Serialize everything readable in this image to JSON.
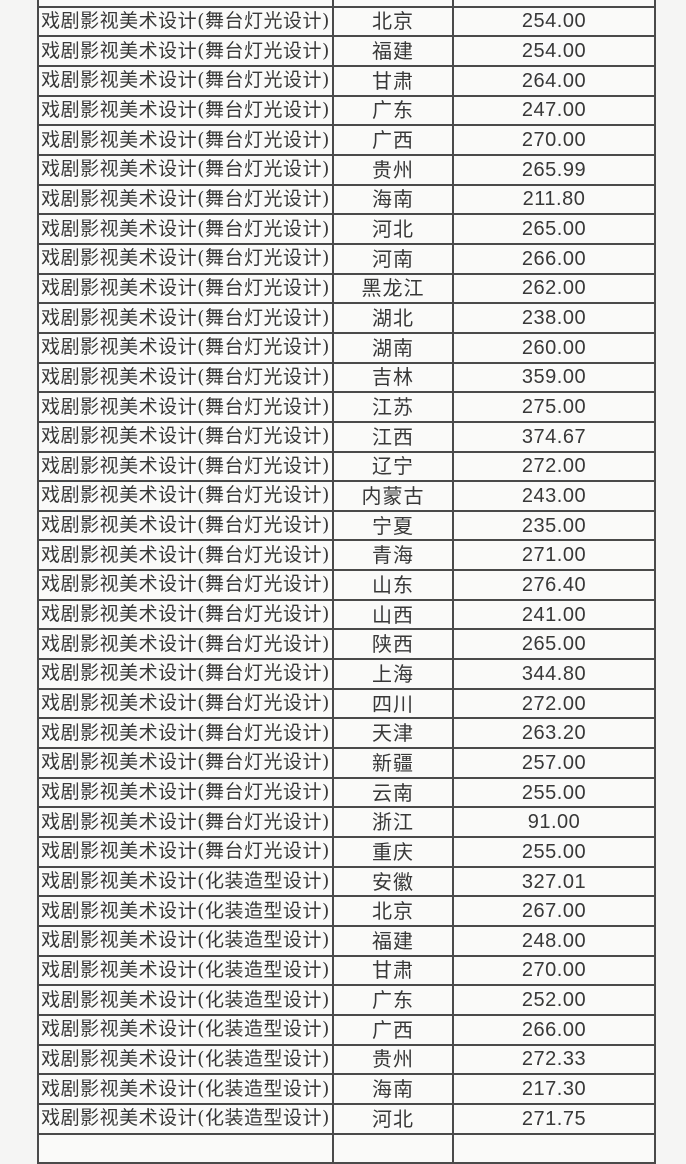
{
  "colors": {
    "page_bg": "#f5f5f4",
    "cell_bg": "#fafaf9",
    "border": "#4a4a4a",
    "text": "#383838"
  },
  "table": {
    "rows": [
      {
        "program": "戏剧影视美术设计(舞台灯光设计)",
        "province": "北京",
        "score": "254.00"
      },
      {
        "program": "戏剧影视美术设计(舞台灯光设计)",
        "province": "福建",
        "score": "254.00"
      },
      {
        "program": "戏剧影视美术设计(舞台灯光设计)",
        "province": "甘肃",
        "score": "264.00"
      },
      {
        "program": "戏剧影视美术设计(舞台灯光设计)",
        "province": "广东",
        "score": "247.00"
      },
      {
        "program": "戏剧影视美术设计(舞台灯光设计)",
        "province": "广西",
        "score": "270.00"
      },
      {
        "program": "戏剧影视美术设计(舞台灯光设计)",
        "province": "贵州",
        "score": "265.99"
      },
      {
        "program": "戏剧影视美术设计(舞台灯光设计)",
        "province": "海南",
        "score": "211.80"
      },
      {
        "program": "戏剧影视美术设计(舞台灯光设计)",
        "province": "河北",
        "score": "265.00"
      },
      {
        "program": "戏剧影视美术设计(舞台灯光设计)",
        "province": "河南",
        "score": "266.00"
      },
      {
        "program": "戏剧影视美术设计(舞台灯光设计)",
        "province": "黑龙江",
        "score": "262.00"
      },
      {
        "program": "戏剧影视美术设计(舞台灯光设计)",
        "province": "湖北",
        "score": "238.00"
      },
      {
        "program": "戏剧影视美术设计(舞台灯光设计)",
        "province": "湖南",
        "score": "260.00"
      },
      {
        "program": "戏剧影视美术设计(舞台灯光设计)",
        "province": "吉林",
        "score": "359.00"
      },
      {
        "program": "戏剧影视美术设计(舞台灯光设计)",
        "province": "江苏",
        "score": "275.00"
      },
      {
        "program": "戏剧影视美术设计(舞台灯光设计)",
        "province": "江西",
        "score": "374.67"
      },
      {
        "program": "戏剧影视美术设计(舞台灯光设计)",
        "province": "辽宁",
        "score": "272.00"
      },
      {
        "program": "戏剧影视美术设计(舞台灯光设计)",
        "province": "内蒙古",
        "score": "243.00"
      },
      {
        "program": "戏剧影视美术设计(舞台灯光设计)",
        "province": "宁夏",
        "score": "235.00"
      },
      {
        "program": "戏剧影视美术设计(舞台灯光设计)",
        "province": "青海",
        "score": "271.00"
      },
      {
        "program": "戏剧影视美术设计(舞台灯光设计)",
        "province": "山东",
        "score": "276.40"
      },
      {
        "program": "戏剧影视美术设计(舞台灯光设计)",
        "province": "山西",
        "score": "241.00"
      },
      {
        "program": "戏剧影视美术设计(舞台灯光设计)",
        "province": "陕西",
        "score": "265.00"
      },
      {
        "program": "戏剧影视美术设计(舞台灯光设计)",
        "province": "上海",
        "score": "344.80"
      },
      {
        "program": "戏剧影视美术设计(舞台灯光设计)",
        "province": "四川",
        "score": "272.00"
      },
      {
        "program": "戏剧影视美术设计(舞台灯光设计)",
        "province": "天津",
        "score": "263.20"
      },
      {
        "program": "戏剧影视美术设计(舞台灯光设计)",
        "province": "新疆",
        "score": "257.00"
      },
      {
        "program": "戏剧影视美术设计(舞台灯光设计)",
        "province": "云南",
        "score": "255.00"
      },
      {
        "program": "戏剧影视美术设计(舞台灯光设计)",
        "province": "浙江",
        "score": "91.00"
      },
      {
        "program": "戏剧影视美术设计(舞台灯光设计)",
        "province": "重庆",
        "score": "255.00"
      },
      {
        "program": "戏剧影视美术设计(化装造型设计)",
        "province": "安徽",
        "score": "327.01"
      },
      {
        "program": "戏剧影视美术设计(化装造型设计)",
        "province": "北京",
        "score": "267.00"
      },
      {
        "program": "戏剧影视美术设计(化装造型设计)",
        "province": "福建",
        "score": "248.00"
      },
      {
        "program": "戏剧影视美术设计(化装造型设计)",
        "province": "甘肃",
        "score": "270.00"
      },
      {
        "program": "戏剧影视美术设计(化装造型设计)",
        "province": "广东",
        "score": "252.00"
      },
      {
        "program": "戏剧影视美术设计(化装造型设计)",
        "province": "广西",
        "score": "266.00"
      },
      {
        "program": "戏剧影视美术设计(化装造型设计)",
        "province": "贵州",
        "score": "272.33"
      },
      {
        "program": "戏剧影视美术设计(化装造型设计)",
        "province": "海南",
        "score": "217.30"
      },
      {
        "program": "戏剧影视美术设计(化装造型设计)",
        "province": "河北",
        "score": "271.75"
      }
    ]
  }
}
